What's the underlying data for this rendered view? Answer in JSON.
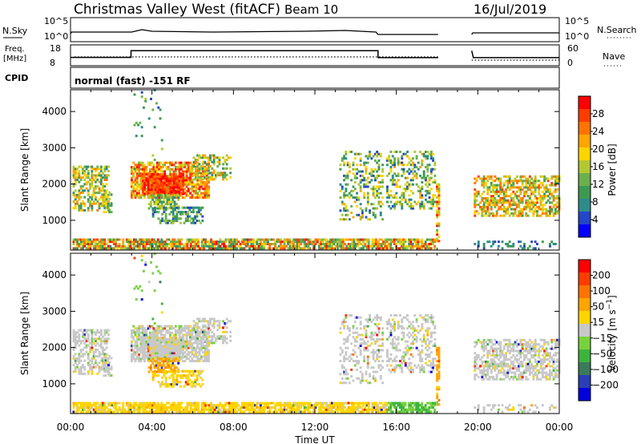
{
  "header": {
    "station": "Christmas Valley West (fitACF)",
    "beam": "Beam 10",
    "date": "16/Jul/2019"
  },
  "aux": {
    "nsky_label": "N.Sky",
    "nsky_ticks": [
      "10^5",
      "10^0"
    ],
    "nsearch_label": "N.Search",
    "nsearch_ticks": [
      "10^5",
      "10^0"
    ],
    "freq_label": [
      "Freq.",
      "[MHz]"
    ],
    "freq_ticks": [
      "18",
      "8"
    ],
    "nave_label": "Nave",
    "nave_ticks": [
      "60",
      "0"
    ],
    "cpid_label": "CPID",
    "cpid_text": "normal (fast) -151 RF"
  },
  "colors": {
    "power": [
      "#0000ff",
      "#2446c8",
      "#2e8b8b",
      "#3c9a50",
      "#6ab04c",
      "#b4c832",
      "#ffd400",
      "#ffa500",
      "#ff7300",
      "#ff3c00",
      "#ff0000"
    ],
    "velocity": [
      "#0000dd",
      "#2a3fb4",
      "#3a7a5a",
      "#3cb43c",
      "#78d23c",
      "#c8c8c8",
      "#ffd400",
      "#ffa500",
      "#ff7300",
      "#ff3c00",
      "#ff0000"
    ]
  },
  "chart_data": [
    {
      "type": "heatmap",
      "title": "Power",
      "ylabel": "Slant Range [km]",
      "xlabel": "Time UT",
      "x_ticks": [
        "00:00",
        "04:00",
        "08:00",
        "12:00",
        "16:00",
        "20:00",
        "00:00"
      ],
      "xlim_hours": [
        0,
        24
      ],
      "y_ticks": [
        1000,
        2000,
        3000,
        4000
      ],
      "ylim": [
        180,
        4600
      ],
      "colorbar": {
        "label": "Power [dB]",
        "ticks": [
          4,
          8,
          12,
          16,
          20,
          24,
          28
        ],
        "range": [
          0,
          32
        ]
      },
      "data_gaps_hours": [
        [
          18.05,
          19.7
        ]
      ]
    },
    {
      "type": "heatmap",
      "title": "Velocity",
      "ylabel": "Slant Range [km]",
      "xlabel": "Time UT",
      "x_ticks": [
        "00:00",
        "04:00",
        "08:00",
        "12:00",
        "16:00",
        "20:00",
        "00:00"
      ],
      "xlim_hours": [
        0,
        24
      ],
      "y_ticks": [
        1000,
        2000,
        3000,
        4000
      ],
      "ylim": [
        180,
        4600
      ],
      "colorbar": {
        "label": "Velocity [m s^-1]",
        "ticks": [
          200,
          100,
          50,
          15,
          -15,
          -50,
          -100,
          -200
        ]
      },
      "data_gaps_hours": [
        [
          18.05,
          19.7
        ]
      ]
    }
  ]
}
